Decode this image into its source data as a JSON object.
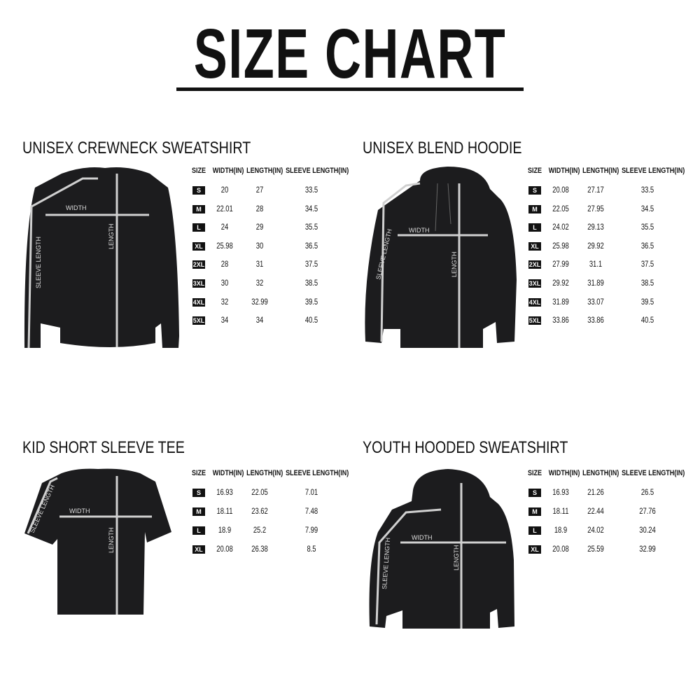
{
  "title": "SIZE CHART",
  "columns": [
    "SIZE",
    "WIDTH(IN)",
    "LENGTH(IN)",
    "SLEEVE LENGTH(IN)"
  ],
  "measure_labels": {
    "width": "WIDTH",
    "length": "LENGTH",
    "sleeve": "SLEEVE LENGTH"
  },
  "colors": {
    "garment": "#1c1c1e",
    "measure_line": "#d0d0d0",
    "badge": "#111111"
  },
  "sections": [
    {
      "heading": "UNISEX CREWNECK SWEATSHIRT",
      "rows": [
        [
          "S",
          "20",
          "27",
          "33.5"
        ],
        [
          "M",
          "22.01",
          "28",
          "34.5"
        ],
        [
          "L",
          "24",
          "29",
          "35.5"
        ],
        [
          "XL",
          "25.98",
          "30",
          "36.5"
        ],
        [
          "2XL",
          "28",
          "31",
          "37.5"
        ],
        [
          "3XL",
          "30",
          "32",
          "38.5"
        ],
        [
          "4XL",
          "32",
          "32.99",
          "39.5"
        ],
        [
          "5XL",
          "34",
          "34",
          "40.5"
        ]
      ]
    },
    {
      "heading": "UNISEX BLEND HOODIE",
      "rows": [
        [
          "S",
          "20.08",
          "27.17",
          "33.5"
        ],
        [
          "M",
          "22.05",
          "27.95",
          "34.5"
        ],
        [
          "L",
          "24.02",
          "29.13",
          "35.5"
        ],
        [
          "XL",
          "25.98",
          "29.92",
          "36.5"
        ],
        [
          "2XL",
          "27.99",
          "31.1",
          "37.5"
        ],
        [
          "3XL",
          "29.92",
          "31.89",
          "38.5"
        ],
        [
          "4XL",
          "31.89",
          "33.07",
          "39.5"
        ],
        [
          "5XL",
          "33.86",
          "33.86",
          "40.5"
        ]
      ]
    },
    {
      "heading": "KID SHORT SLEEVE TEE",
      "rows": [
        [
          "S",
          "16.93",
          "22.05",
          "7.01"
        ],
        [
          "M",
          "18.11",
          "23.62",
          "7.48"
        ],
        [
          "L",
          "18.9",
          "25.2",
          "7.99"
        ],
        [
          "XL",
          "20.08",
          "26.38",
          "8.5"
        ]
      ]
    },
    {
      "heading": "YOUTH HOODED SWEATSHIRT",
      "rows": [
        [
          "S",
          "16.93",
          "21.26",
          "26.5"
        ],
        [
          "M",
          "18.11",
          "22.44",
          "27.76"
        ],
        [
          "L",
          "18.9",
          "24.02",
          "30.24"
        ],
        [
          "XL",
          "20.08",
          "25.59",
          "32.99"
        ]
      ]
    }
  ]
}
